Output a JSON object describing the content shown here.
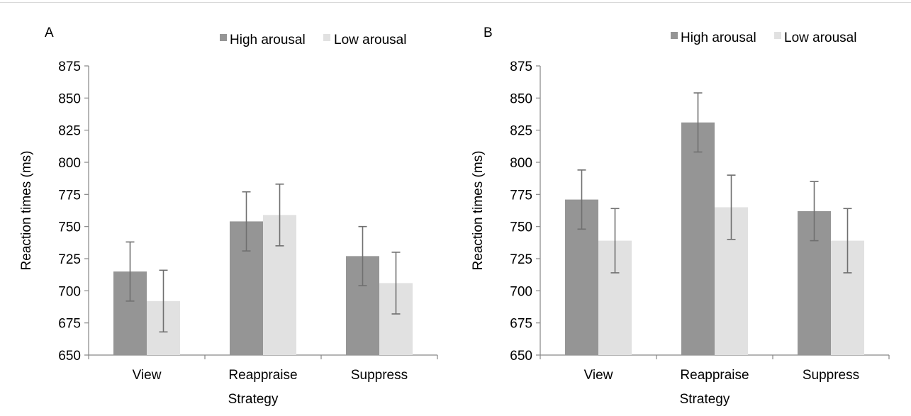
{
  "chart_data": [
    {
      "type": "bar",
      "panel_label": "A",
      "categories": [
        "View",
        "Reappraise",
        "Suppress"
      ],
      "series": [
        {
          "name": "High arousal",
          "color": "#959595",
          "values": [
            715,
            754,
            727
          ],
          "error": [
            23,
            23,
            23
          ]
        },
        {
          "name": "Low arousal",
          "color": "#e1e1e1",
          "values": [
            692,
            759,
            706
          ],
          "error": [
            24,
            24,
            24
          ]
        }
      ],
      "xlabel": "Strategy",
      "ylabel": "Reaction times (ms)",
      "ylim": [
        650,
        875
      ],
      "yticks": [
        "650",
        "675",
        "700",
        "725",
        "750",
        "775",
        "800",
        "825",
        "850",
        "875"
      ],
      "grid": false,
      "legend": "top"
    },
    {
      "type": "bar",
      "panel_label": "B",
      "categories": [
        "View",
        "Reappraise",
        "Suppress"
      ],
      "series": [
        {
          "name": "High arousal",
          "color": "#959595",
          "values": [
            771,
            831,
            762
          ],
          "error": [
            23,
            23,
            23
          ]
        },
        {
          "name": "Low arousal",
          "color": "#e1e1e1",
          "values": [
            739,
            765,
            739
          ],
          "error": [
            25,
            25,
            25
          ]
        }
      ],
      "xlabel": "Strategy",
      "ylabel": "Reaction times (ms)",
      "ylim": [
        650,
        875
      ],
      "yticks": [
        "650",
        "675",
        "700",
        "725",
        "750",
        "775",
        "800",
        "825",
        "850",
        "875"
      ],
      "grid": false,
      "legend": "top"
    }
  ]
}
